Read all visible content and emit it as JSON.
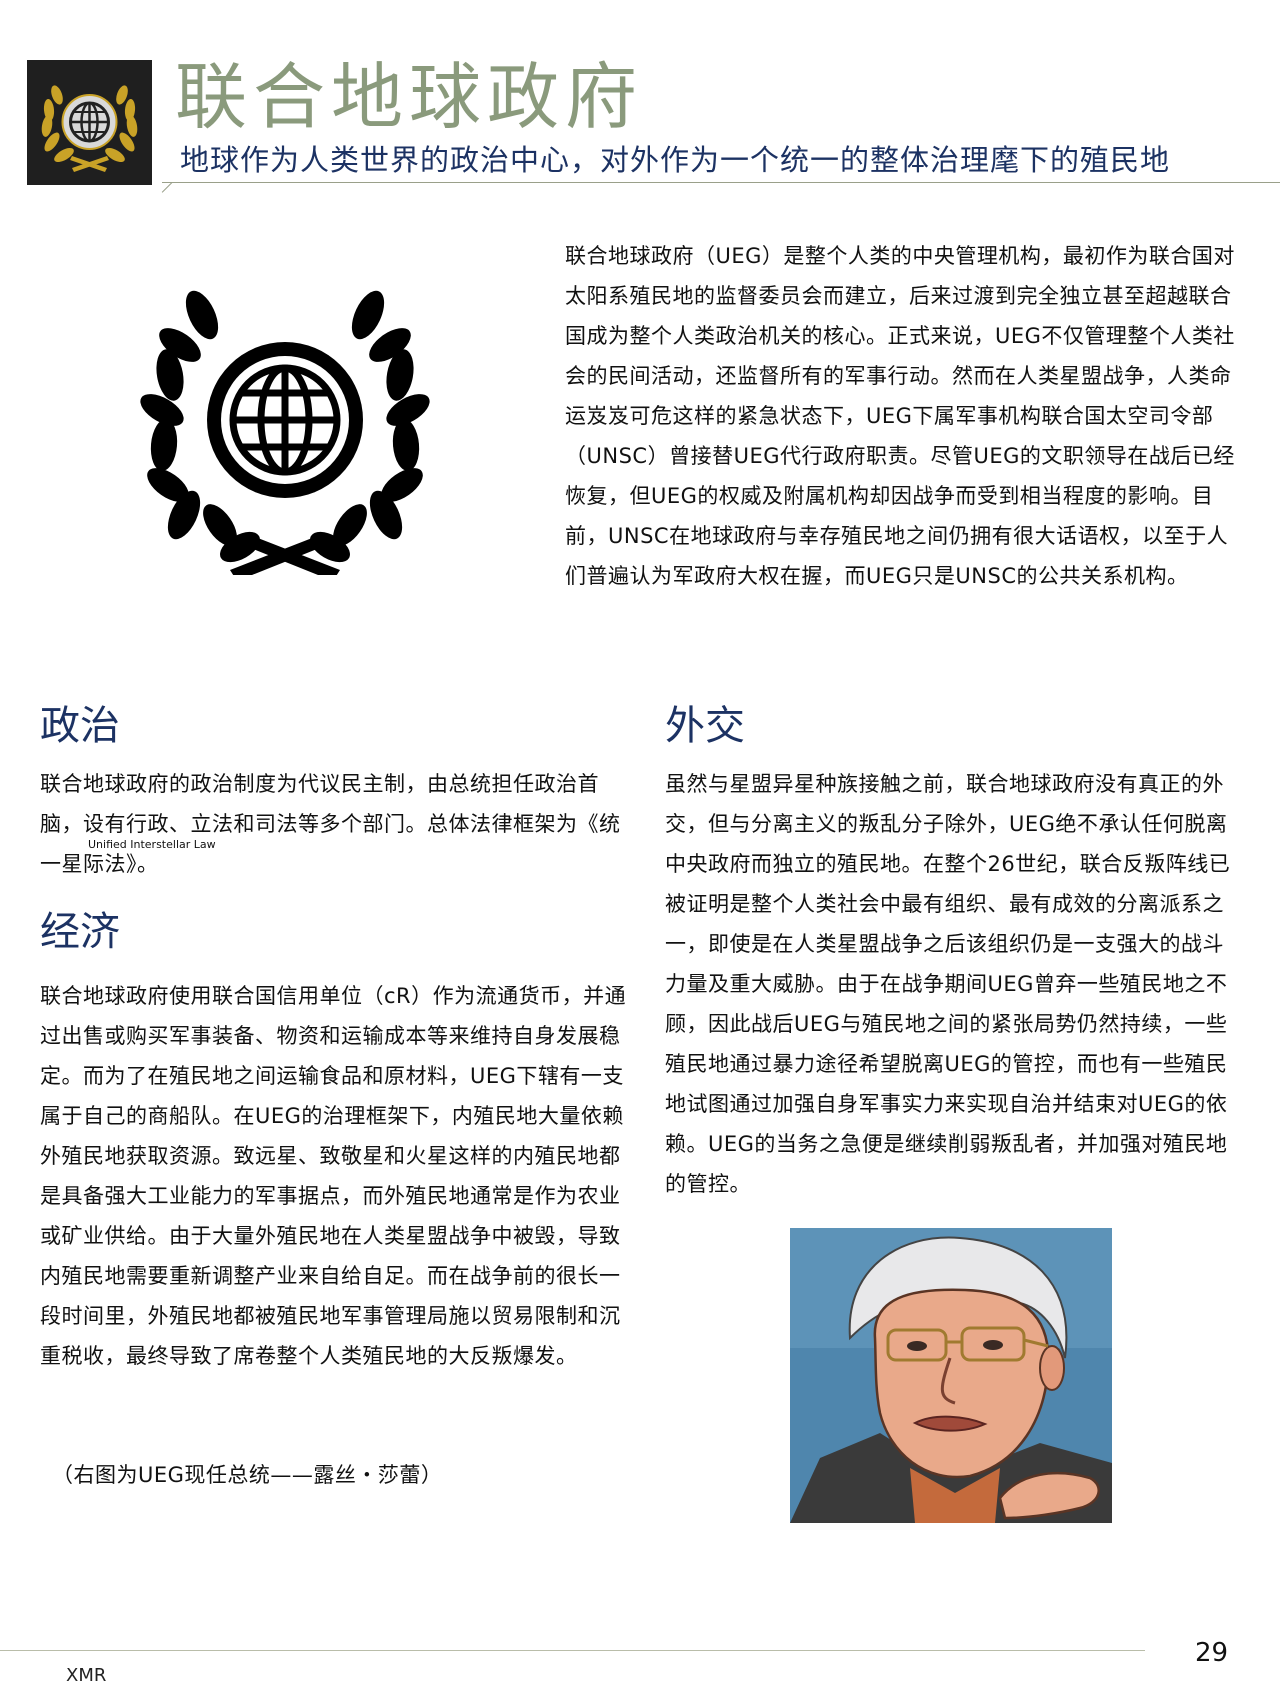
{
  "header": {
    "title": "联合地球政府",
    "subtitle": "地球作为人类世界的政治中心，对外作为一个统一的整体治理麾下的殖民地"
  },
  "intro": {
    "text": "联合地球政府（UEG）是整个人类的中央管理机构，最初作为联合国对太阳系殖民地的监督委员会而建立，后来过渡到完全独立甚至超越联合国成为整个人类政治机关的核心。正式来说，UEG不仅管理整个人类社会的民间活动，还监督所有的军事行动。然而在人类星盟战争，人类命运岌岌可危这样的紧急状态下，UEG下属军事机构联合国太空司令部（UNSC）曾接替UEG代行政府职责。尽管UEG的文职领导在战后已经恢复，但UEG的权威及附属机构却因战争而受到相当程度的影响。目前，UNSC在地球政府与幸存殖民地之间仍拥有很大话语权，以至于人们普遍认为军政府大权在握，而UEG只是UNSC的公共关系机构。"
  },
  "politics": {
    "heading": "政治",
    "text": "联合地球政府的政治制度为代议民主制，由总统担任政治首脑，设有行政、立法和司法等多个部门。总体法律框架为《统一星际法》。",
    "ruby": "Unified Interstellar Law"
  },
  "economy": {
    "heading": "经济",
    "text": "联合地球政府使用联合国信用单位（cR）作为流通货币，并通过出售或购买军事装备、物资和运输成本等来维持自身发展稳定。而为了在殖民地之间运输食品和原材料，UEG下辖有一支属于自己的商船队。在UEG的治理框架下，内殖民地大量依赖外殖民地获取资源。致远星、致敬星和火星这样的内殖民地都是具备强大工业能力的军事据点，而外殖民地通常是作为农业或矿业供给。由于大量外殖民地在人类星盟战争中被毁，导致内殖民地需要重新调整产业来自给自足。而在战争前的很长一段时间里，外殖民地都被殖民地军事管理局施以贸易限制和沉重税收，最终导致了席卷整个人类殖民地的大反叛爆发。",
    "caption": "（右图为UEG现任总统——露丝・莎蕾）"
  },
  "diplomacy": {
    "heading": "外交",
    "text": "虽然与星盟异星种族接触之前，联合地球政府没有真正的外交，但与分离主义的叛乱分子除外，UEG绝不承认任何脱离中央政府而独立的殖民地。在整个26世纪，联合反叛阵线已被证明是整个人类社会中最有组织、最有成效的分离派系之一，即使是在人类星盟战争之后该组织仍是一支强大的战斗力量及重大威胁。由于在战争期间UEG曾弃一些殖民地之不顾，因此战后UEG与殖民地之间的紧张局势仍然持续，一些殖民地通过暴力途径希望脱离UEG的管控，而也有一些殖民地试图通过加强自身军事实力来实现自治并结束对UEG的依赖。UEG的当务之急便是继续削弱叛乱者，并加强对殖民地的管控。"
  },
  "footer": {
    "page_number": "29",
    "mark": "XMR"
  },
  "icons": {
    "header_logo": "ueg-laurel-globe-icon",
    "emblem": "ueg-laurel-globe-emblem",
    "portrait": "president-portrait"
  },
  "colors": {
    "title": "#8a9a7c",
    "subtitle": "#1c3263",
    "heading": "#1c3263",
    "logo_gold": "#c9a227"
  }
}
